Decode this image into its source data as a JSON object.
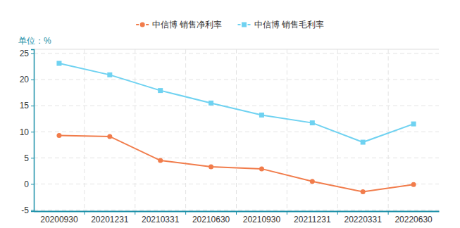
{
  "chart_data": {
    "type": "line",
    "y_label": "单位：%",
    "categories": [
      "20200930",
      "20201231",
      "20210331",
      "20210630",
      "20210930",
      "20211231",
      "20220331",
      "20220630"
    ],
    "series": [
      {
        "name": "中信博 销售净利率",
        "color": "#f17c4b",
        "marker": "circle",
        "values": [
          9.3,
          9.1,
          4.5,
          3.3,
          2.9,
          0.5,
          -1.5,
          -0.1
        ]
      },
      {
        "name": "中信博 销售毛利率",
        "color": "#6fd2f1",
        "marker": "square",
        "values": [
          23.1,
          20.9,
          17.9,
          15.5,
          13.2,
          11.7,
          8.0,
          11.5
        ]
      }
    ],
    "ylim": [
      -5.2,
      25.8
    ],
    "yticks": [
      -5,
      0,
      5,
      10,
      15,
      20,
      25
    ],
    "grid": true,
    "legend": "top"
  }
}
